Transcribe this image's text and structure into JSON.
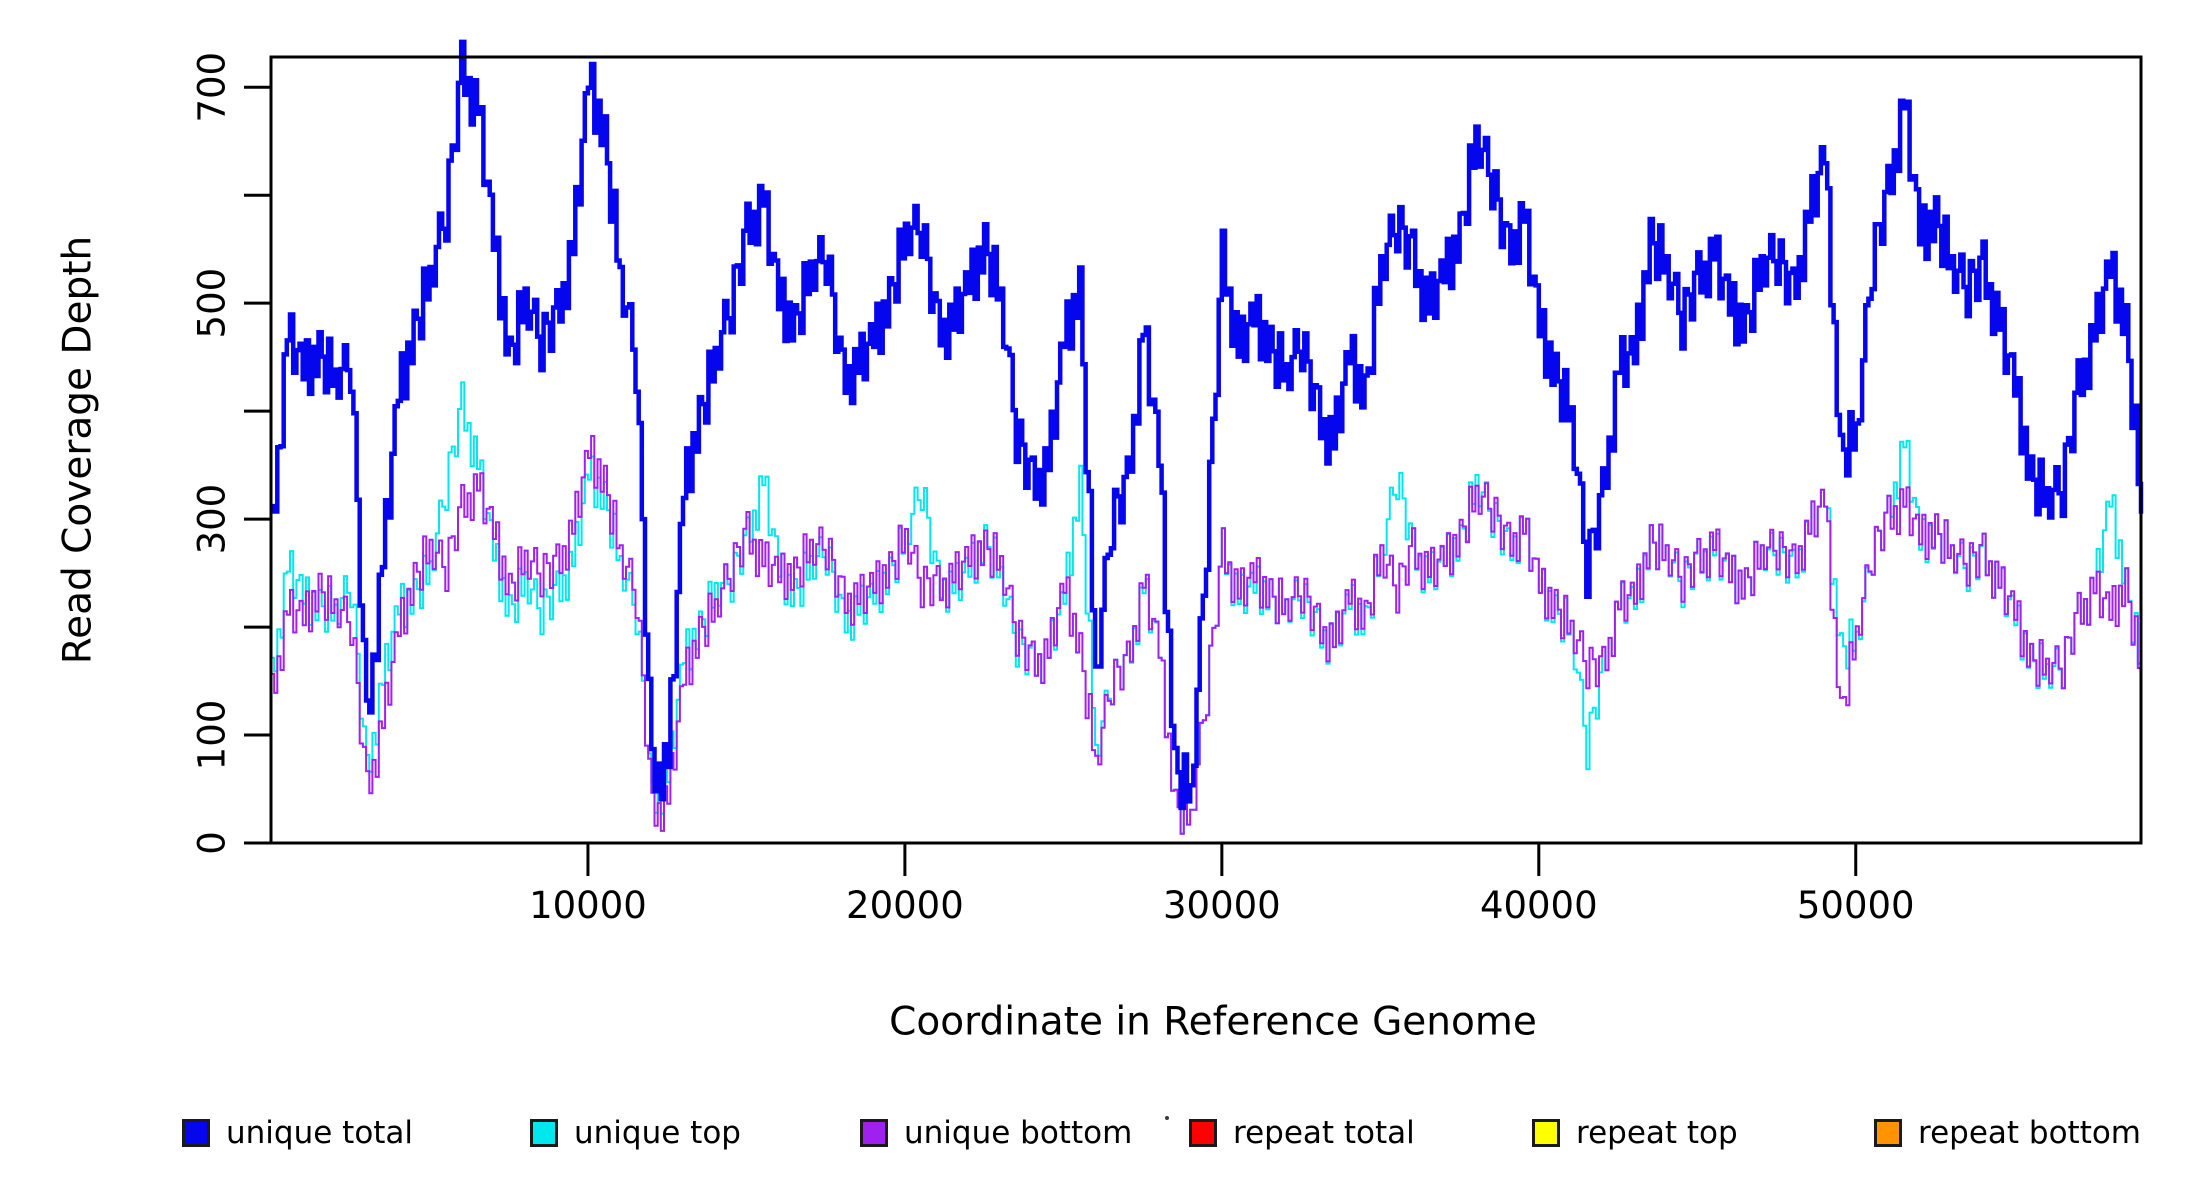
{
  "figure": {
    "background": "#ffffff",
    "kind": "R base-graphics step-line coverage plot"
  },
  "chart_data": {
    "type": "line",
    "line_style": "step",
    "title": "",
    "xlabel": "Coordinate in Reference Genome",
    "ylabel": "Read Coverage Depth",
    "xlim": [
      0,
      59000
    ],
    "ylim": [
      0,
      728
    ],
    "grid": false,
    "legend_position": "bottom",
    "x_ticks": {
      "values": [
        10000,
        20000,
        30000,
        40000,
        50000
      ],
      "labels": [
        "10000",
        "20000",
        "30000",
        "40000",
        "50000"
      ]
    },
    "y_ticks": {
      "values": [
        0,
        100,
        200,
        300,
        400,
        500,
        600,
        700
      ],
      "labels": [
        "0",
        "100",
        "",
        "300",
        "",
        "500",
        "",
        "700"
      ]
    },
    "x_anchor_start": 0,
    "x_anchor_step": 500,
    "substep": {
      "count": 5,
      "jitter": [
        0.9,
        -0.5,
        0.25,
        -0.95,
        0.65,
        -0.15,
        0.85,
        -0.75,
        0.15,
        0.55,
        -0.35,
        0.75,
        -1,
        0.35,
        -0.65,
        0.6,
        0.05,
        -0.85,
        1,
        -0.25,
        0.45,
        -0.55,
        0.2,
        0.8,
        -0.1,
        -0.9,
        0.7,
        0.3,
        -0.7,
        0.5
      ]
    },
    "series": [
      {
        "name": "unique total",
        "color": "#0606EE",
        "width": 4.5,
        "jitter_amp": 30,
        "anchors": [
          285,
          470,
          440,
          455,
          425,
          445,
          105,
          260,
          420,
          475,
          520,
          585,
          715,
          680,
          560,
          450,
          500,
          465,
          485,
          550,
          710,
          655,
          520,
          445,
          60,
          75,
          330,
          395,
          445,
          500,
          565,
          595,
          505,
          480,
          525,
          545,
          430,
          440,
          470,
          505,
          560,
          570,
          475,
          480,
          520,
          555,
          500,
          380,
          330,
          350,
          470,
          515,
          150,
          300,
          330,
          475,
          360,
          70,
          40,
          280,
          540,
          455,
          490,
          460,
          430,
          465,
          395,
          370,
          455,
          415,
          530,
          575,
          540,
          495,
          530,
          565,
          650,
          615,
          545,
          580,
          480,
          435,
          390,
          255,
          320,
          440,
          455,
          560,
          530,
          485,
          520,
          545,
          500,
          480,
          530,
          545,
          505,
          580,
          640,
          360,
          375,
          540,
          600,
          685,
          565,
          580,
          530,
          515,
          530,
          480,
          425,
          340,
          315,
          330,
          420,
          470,
          535,
          480,
          305
        ]
      },
      {
        "name": "unique top",
        "color": "#00E8EE",
        "width": 2,
        "jitter_amp": 24,
        "anchors": [
          150,
          255,
          230,
          220,
          210,
          240,
          60,
          150,
          220,
          230,
          250,
          330,
          405,
          350,
          270,
          215,
          240,
          215,
          230,
          260,
          345,
          320,
          255,
          215,
          35,
          60,
          175,
          200,
          230,
          245,
          280,
          335,
          255,
          230,
          255,
          270,
          205,
          215,
          230,
          250,
          280,
          330,
          240,
          235,
          255,
          280,
          245,
          185,
          165,
          175,
          230,
          335,
          80,
          150,
          165,
          235,
          180,
          35,
          20,
          140,
          270,
          225,
          240,
          230,
          215,
          230,
          195,
          185,
          225,
          205,
          265,
          340,
          270,
          245,
          265,
          280,
          330,
          305,
          270,
          290,
          240,
          215,
          195,
          90,
          160,
          220,
          225,
          280,
          265,
          240,
          260,
          270,
          250,
          240,
          265,
          270,
          250,
          290,
          320,
          180,
          185,
          270,
          300,
          370,
          280,
          290,
          265,
          255,
          265,
          240,
          210,
          170,
          155,
          165,
          210,
          235,
          320,
          240,
          155
        ]
      },
      {
        "name": "unique bottom",
        "color": "#A020F0",
        "width": 2,
        "jitter_amp": 24,
        "anchors": [
          135,
          215,
          210,
          235,
          215,
          205,
          45,
          110,
          200,
          245,
          270,
          255,
          310,
          330,
          290,
          235,
          260,
          250,
          255,
          290,
          365,
          335,
          265,
          230,
          25,
          40,
          155,
          195,
          215,
          255,
          285,
          260,
          250,
          250,
          270,
          275,
          225,
          225,
          240,
          255,
          280,
          240,
          235,
          245,
          265,
          275,
          255,
          195,
          165,
          175,
          240,
          180,
          70,
          150,
          165,
          240,
          180,
          35,
          20,
          140,
          270,
          230,
          250,
          230,
          215,
          235,
          200,
          185,
          230,
          210,
          265,
          235,
          270,
          250,
          265,
          285,
          320,
          310,
          275,
          290,
          240,
          220,
          195,
          165,
          160,
          220,
          230,
          280,
          265,
          245,
          260,
          275,
          250,
          240,
          265,
          275,
          255,
          290,
          320,
          120,
          190,
          270,
          300,
          315,
          285,
          290,
          265,
          260,
          265,
          240,
          215,
          170,
          160,
          165,
          210,
          235,
          215,
          240,
          150
        ]
      },
      {
        "name": "repeat total",
        "color": "#FF0000",
        "width": 2,
        "constant": 0
      },
      {
        "name": "repeat top",
        "color": "#FFFF00",
        "width": 2,
        "constant": 0
      },
      {
        "name": "repeat bottom",
        "color": "#FF9300",
        "width": 3,
        "constant": 0
      }
    ]
  },
  "legend": {
    "items": [
      {
        "label": "unique total",
        "color": "#0606EE"
      },
      {
        "label": "unique top",
        "color": "#00E8EE"
      },
      {
        "label": "unique bottom",
        "color": "#A020F0"
      },
      {
        "label": "repeat total",
        "color": "#FF0000"
      },
      {
        "label": "repeat top",
        "color": "#FFFF00"
      },
      {
        "label": "repeat bottom",
        "color": "#FF9300"
      }
    ]
  }
}
